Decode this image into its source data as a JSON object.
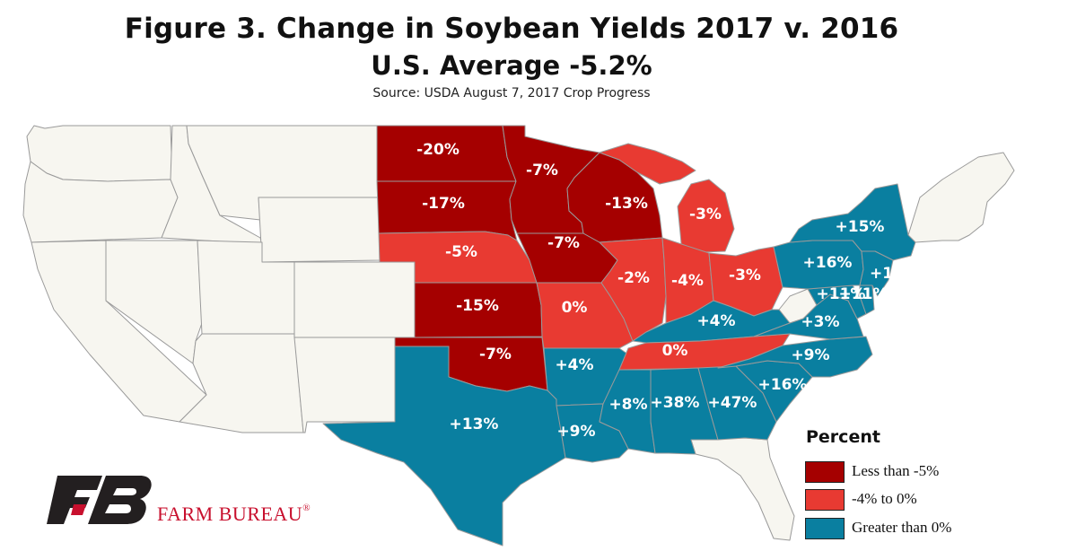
{
  "title": "Figure 3. Change in Soybean Yields 2017 v. 2016",
  "subtitle": "U.S. Average -5.2%",
  "source": "Source: USDA August 7, 2017 Crop Progress",
  "colors": {
    "less_than_minus5": "#a50000",
    "minus4_to_0": "#e83a32",
    "greater_than_0": "#0a7fa0",
    "no_data": "#f7f6f0",
    "border": "#9a9a9a"
  },
  "legend": {
    "title": "Percent",
    "items": [
      {
        "label": "Less than -5%",
        "category": "less_than_minus5"
      },
      {
        "label": "-4% to 0%",
        "category": "minus4_to_0"
      },
      {
        "label": "Greater than 0%",
        "category": "greater_than_0"
      }
    ]
  },
  "states": [
    {
      "state": "ND",
      "category": "less_than_minus5",
      "label": "-20%",
      "value": -20
    },
    {
      "state": "SD",
      "category": "less_than_minus5",
      "label": "-17%",
      "value": -17
    },
    {
      "state": "NE",
      "category": "minus4_to_0",
      "label": "-5%",
      "value": -5
    },
    {
      "state": "KS",
      "category": "less_than_minus5",
      "label": "-15%",
      "value": -15
    },
    {
      "state": "OK",
      "category": "less_than_minus5",
      "label": "-7%",
      "value": -7
    },
    {
      "state": "TX",
      "category": "greater_than_0",
      "label": "+13%",
      "value": 13
    },
    {
      "state": "MN",
      "category": "less_than_minus5",
      "label": "-7%",
      "value": -7
    },
    {
      "state": "IA",
      "category": "less_than_minus5",
      "label": "-7%",
      "value": -7
    },
    {
      "state": "MO",
      "category": "minus4_to_0",
      "label": "0%",
      "value": 0
    },
    {
      "state": "AR",
      "category": "greater_than_0",
      "label": "+4%",
      "value": 4
    },
    {
      "state": "LA",
      "category": "greater_than_0",
      "label": "+9%",
      "value": 9
    },
    {
      "state": "WI",
      "category": "less_than_minus5",
      "label": "-13%",
      "value": -13
    },
    {
      "state": "IL",
      "category": "minus4_to_0",
      "label": "-2%",
      "value": -2
    },
    {
      "state": "MI",
      "category": "minus4_to_0",
      "label": "-3%",
      "value": -3
    },
    {
      "state": "IN",
      "category": "minus4_to_0",
      "label": "-4%",
      "value": -4
    },
    {
      "state": "OH",
      "category": "minus4_to_0",
      "label": "-3%",
      "value": -3
    },
    {
      "state": "KY",
      "category": "greater_than_0",
      "label": "+4%",
      "value": 4
    },
    {
      "state": "TN",
      "category": "minus4_to_0",
      "label": "0%",
      "value": 0
    },
    {
      "state": "MS",
      "category": "greater_than_0",
      "label": "+8%",
      "value": 8
    },
    {
      "state": "AL",
      "category": "greater_than_0",
      "label": "+38%",
      "value": 38
    },
    {
      "state": "GA",
      "category": "greater_than_0",
      "label": "+47%",
      "value": 47
    },
    {
      "state": "SC",
      "category": "greater_than_0",
      "label": "+16%",
      "value": 16
    },
    {
      "state": "NC",
      "category": "greater_than_0",
      "label": "+9%",
      "value": 9
    },
    {
      "state": "VA",
      "category": "greater_than_0",
      "label": "+3%",
      "value": 3
    },
    {
      "state": "MD",
      "category": "greater_than_0",
      "label": "+11%",
      "value": 11
    },
    {
      "state": "DE",
      "category": "greater_than_0",
      "label": "+11%",
      "value": 11
    },
    {
      "state": "PA",
      "category": "greater_than_0",
      "label": "+16%",
      "value": 16
    },
    {
      "state": "NY",
      "category": "greater_than_0",
      "label": "+15%",
      "value": 15
    },
    {
      "state": "NJ",
      "category": "greater_than_0",
      "label": "+11",
      "value": 11
    }
  ],
  "brand": {
    "name": "FARM BUREAU",
    "mark": "®"
  }
}
